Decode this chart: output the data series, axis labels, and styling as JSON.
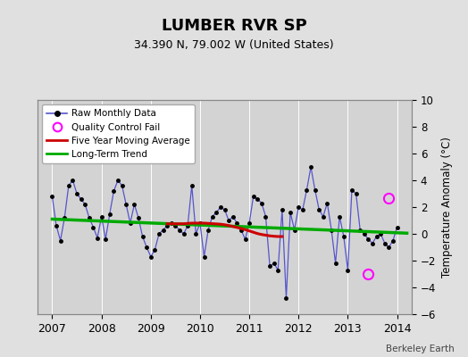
{
  "title": "LUMBER RVR SP",
  "subtitle": "34.390 N, 79.002 W (United States)",
  "ylabel_right": "Temperature Anomaly (°C)",
  "credit": "Berkeley Earth",
  "xlim": [
    2006.7,
    2014.3
  ],
  "ylim": [
    -6,
    10
  ],
  "yticks": [
    -6,
    -4,
    -2,
    0,
    2,
    4,
    6,
    8,
    10
  ],
  "xticks": [
    2007,
    2008,
    2009,
    2010,
    2011,
    2012,
    2013,
    2014
  ],
  "bg_color": "#e0e0e0",
  "plot_bg_color": "#d3d3d3",
  "grid_color": "#ffffff",
  "raw_color": "#5555cc",
  "raw_marker_color": "#000000",
  "moving_avg_color": "#cc0000",
  "trend_color": "#00aa00",
  "qc_fail_color": "#ff00ff",
  "raw_data": [
    [
      2007.0,
      2.8
    ],
    [
      2007.083,
      0.6
    ],
    [
      2007.167,
      -0.5
    ],
    [
      2007.25,
      1.2
    ],
    [
      2007.333,
      3.6
    ],
    [
      2007.417,
      4.0
    ],
    [
      2007.5,
      3.0
    ],
    [
      2007.583,
      2.6
    ],
    [
      2007.667,
      2.2
    ],
    [
      2007.75,
      1.2
    ],
    [
      2007.833,
      0.5
    ],
    [
      2007.917,
      -0.3
    ],
    [
      2008.0,
      1.3
    ],
    [
      2008.083,
      -0.4
    ],
    [
      2008.167,
      1.5
    ],
    [
      2008.25,
      3.2
    ],
    [
      2008.333,
      4.0
    ],
    [
      2008.417,
      3.6
    ],
    [
      2008.5,
      2.2
    ],
    [
      2008.583,
      0.8
    ],
    [
      2008.667,
      2.2
    ],
    [
      2008.75,
      1.2
    ],
    [
      2008.833,
      -0.2
    ],
    [
      2008.917,
      -1.0
    ],
    [
      2009.0,
      -1.7
    ],
    [
      2009.083,
      -1.2
    ],
    [
      2009.167,
      0.0
    ],
    [
      2009.25,
      0.3
    ],
    [
      2009.333,
      0.6
    ],
    [
      2009.417,
      0.8
    ],
    [
      2009.5,
      0.6
    ],
    [
      2009.583,
      0.3
    ],
    [
      2009.667,
      0.0
    ],
    [
      2009.75,
      0.6
    ],
    [
      2009.833,
      3.6
    ],
    [
      2009.917,
      0.0
    ],
    [
      2010.0,
      0.8
    ],
    [
      2010.083,
      -1.7
    ],
    [
      2010.167,
      0.3
    ],
    [
      2010.25,
      1.3
    ],
    [
      2010.333,
      1.6
    ],
    [
      2010.417,
      2.0
    ],
    [
      2010.5,
      1.8
    ],
    [
      2010.583,
      1.0
    ],
    [
      2010.667,
      1.3
    ],
    [
      2010.75,
      0.8
    ],
    [
      2010.833,
      0.3
    ],
    [
      2010.917,
      -0.4
    ],
    [
      2011.0,
      0.8
    ],
    [
      2011.083,
      2.8
    ],
    [
      2011.167,
      2.6
    ],
    [
      2011.25,
      2.3
    ],
    [
      2011.333,
      1.3
    ],
    [
      2011.417,
      -2.4
    ],
    [
      2011.5,
      -2.2
    ],
    [
      2011.583,
      -2.7
    ],
    [
      2011.667,
      1.8
    ],
    [
      2011.75,
      -4.8
    ],
    [
      2011.833,
      1.6
    ],
    [
      2011.917,
      0.3
    ],
    [
      2012.0,
      2.0
    ],
    [
      2012.083,
      1.8
    ],
    [
      2012.167,
      3.3
    ],
    [
      2012.25,
      5.0
    ],
    [
      2012.333,
      3.3
    ],
    [
      2012.417,
      1.8
    ],
    [
      2012.5,
      1.3
    ],
    [
      2012.583,
      2.3
    ],
    [
      2012.667,
      0.3
    ],
    [
      2012.75,
      -2.2
    ],
    [
      2012.833,
      1.3
    ],
    [
      2012.917,
      -0.2
    ],
    [
      2013.0,
      -2.7
    ],
    [
      2013.083,
      3.3
    ],
    [
      2013.167,
      3.0
    ],
    [
      2013.25,
      0.3
    ],
    [
      2013.333,
      0.0
    ],
    [
      2013.417,
      -0.4
    ],
    [
      2013.5,
      -0.7
    ],
    [
      2013.583,
      -0.2
    ],
    [
      2013.667,
      0.0
    ],
    [
      2013.75,
      -0.7
    ],
    [
      2013.833,
      -1.0
    ],
    [
      2013.917,
      -0.5
    ],
    [
      2014.0,
      0.5
    ]
  ],
  "qc_fail_points": [
    [
      2013.833,
      2.7
    ],
    [
      2013.417,
      -3.0
    ]
  ],
  "moving_avg": [
    [
      2009.333,
      0.75
    ],
    [
      2009.417,
      0.75
    ],
    [
      2009.5,
      0.75
    ],
    [
      2009.583,
      0.75
    ],
    [
      2009.667,
      0.75
    ],
    [
      2009.75,
      0.78
    ],
    [
      2009.833,
      0.8
    ],
    [
      2009.917,
      0.8
    ],
    [
      2010.0,
      0.8
    ],
    [
      2010.083,
      0.8
    ],
    [
      2010.167,
      0.78
    ],
    [
      2010.25,
      0.76
    ],
    [
      2010.333,
      0.74
    ],
    [
      2010.417,
      0.72
    ],
    [
      2010.5,
      0.68
    ],
    [
      2010.583,
      0.62
    ],
    [
      2010.667,
      0.55
    ],
    [
      2010.75,
      0.48
    ],
    [
      2010.833,
      0.4
    ],
    [
      2010.917,
      0.32
    ],
    [
      2011.0,
      0.22
    ],
    [
      2011.083,
      0.12
    ],
    [
      2011.167,
      0.02
    ],
    [
      2011.25,
      -0.05
    ],
    [
      2011.333,
      -0.1
    ],
    [
      2011.417,
      -0.15
    ],
    [
      2011.5,
      -0.18
    ],
    [
      2011.583,
      -0.2
    ],
    [
      2011.667,
      -0.2
    ]
  ],
  "trend_line": [
    [
      2007.0,
      1.1
    ],
    [
      2014.2,
      0.05
    ]
  ]
}
